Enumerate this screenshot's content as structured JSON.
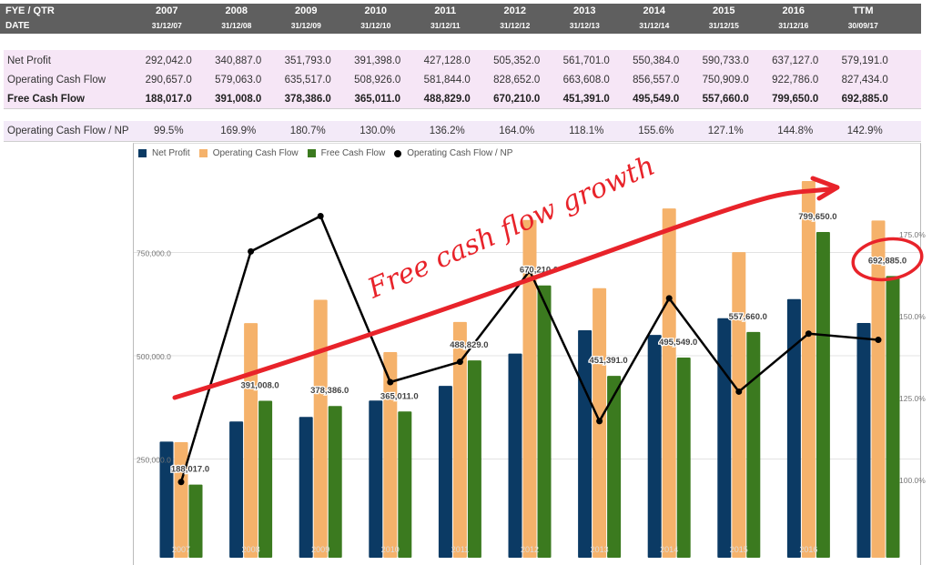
{
  "header": {
    "row1_label": "FYE / QTR",
    "row2_label": "DATE",
    "periods": [
      "2007",
      "2008",
      "2009",
      "2010",
      "2011",
      "2012",
      "2013",
      "2014",
      "2015",
      "2016",
      "TTM"
    ],
    "dates": [
      "31/12/07",
      "31/12/08",
      "31/12/09",
      "31/12/10",
      "31/12/11",
      "31/12/12",
      "31/12/13",
      "31/12/14",
      "31/12/15",
      "31/12/16",
      "30/09/17"
    ]
  },
  "table": {
    "rows": [
      {
        "label": "Net Profit",
        "values": [
          "292,042.0",
          "340,887.0",
          "351,793.0",
          "391,398.0",
          "427,128.0",
          "505,352.0",
          "561,701.0",
          "550,384.0",
          "590,733.0",
          "637,127.0",
          "579,191.0"
        ]
      },
      {
        "label": "Operating Cash Flow",
        "values": [
          "290,657.0",
          "579,063.0",
          "635,517.0",
          "508,926.0",
          "581,844.0",
          "828,652.0",
          "663,608.0",
          "856,557.0",
          "750,909.0",
          "922,786.0",
          "827,434.0"
        ]
      },
      {
        "label": "Free Cash Flow",
        "values": [
          "188,017.0",
          "391,008.0",
          "378,386.0",
          "365,011.0",
          "488,829.0",
          "670,210.0",
          "451,391.0",
          "495,549.0",
          "557,660.0",
          "799,650.0",
          "692,885.0"
        ],
        "bold": true
      }
    ],
    "ratio_row": {
      "label": "Operating Cash Flow / NP",
      "values": [
        "99.5%",
        "169.9%",
        "180.7%",
        "130.0%",
        "136.2%",
        "164.0%",
        "118.1%",
        "155.6%",
        "127.1%",
        "144.8%",
        "142.9%"
      ]
    }
  },
  "colors": {
    "net_profit": "#0b3a64",
    "operating_cash_flow": "#f5b26b",
    "free_cash_flow": "#3b7a1f",
    "ratio_line": "#000000",
    "annotation": "#e8232a",
    "header_bg": "#5f5f5f",
    "table_bg": "#f6e6f6"
  },
  "annotation": {
    "text": "Free cash flow growth",
    "circled_value": "692,885.0"
  },
  "chart_data": {
    "type": "bar",
    "title": "",
    "categories": [
      "2007",
      "2008",
      "2009",
      "2010",
      "2011",
      "2012",
      "2013",
      "2014",
      "2015",
      "2016",
      "TTM"
    ],
    "x_tick_labels": [
      "2007",
      "2008",
      "2009",
      "2010",
      "2011",
      "2012",
      "2013",
      "2014",
      "2015",
      "2016",
      ""
    ],
    "series": [
      {
        "name": "Net Profit",
        "type": "bar",
        "axis": "left",
        "values": [
          292042,
          340887,
          351793,
          391398,
          427128,
          505352,
          561701,
          550384,
          590733,
          637127,
          579191
        ]
      },
      {
        "name": "Operating Cash Flow",
        "type": "bar",
        "axis": "left",
        "values": [
          290657,
          579063,
          635517,
          508926,
          581844,
          828652,
          663608,
          856557,
          750909,
          922786,
          827434
        ]
      },
      {
        "name": "Free Cash Flow",
        "type": "bar",
        "axis": "left",
        "values": [
          188017,
          391008,
          378386,
          365011,
          488829,
          670210,
          451391,
          495549,
          557660,
          799650,
          692885
        ],
        "data_labels": [
          "188,017.0",
          "391,008.0",
          "378,386.0",
          "365,011.0",
          "488,829.0",
          "670,210.0",
          "451,391.0",
          "495,549.0",
          "557,660.0",
          "799,650.0",
          "692,885.0"
        ]
      },
      {
        "name": "Operating Cash Flow / NP",
        "type": "line",
        "axis": "right",
        "values": [
          99.5,
          169.9,
          180.7,
          130.0,
          136.2,
          164.0,
          118.1,
          155.6,
          127.1,
          144.8,
          142.9
        ]
      }
    ],
    "left_axis": {
      "ticks": [
        "250,000.0",
        "500,000.0",
        "750,000.0"
      ],
      "tick_values": [
        250000,
        500000,
        750000
      ]
    },
    "right_axis": {
      "ticks": [
        "100.0%",
        "125.0%",
        "150.0%",
        "175.0%"
      ],
      "tick_values": [
        100,
        125,
        150,
        175
      ]
    },
    "legend": [
      "Net Profit",
      "Operating Cash Flow",
      "Free Cash Flow",
      "Operating Cash Flow / NP"
    ],
    "legend_position": "top-left",
    "grid": true
  }
}
